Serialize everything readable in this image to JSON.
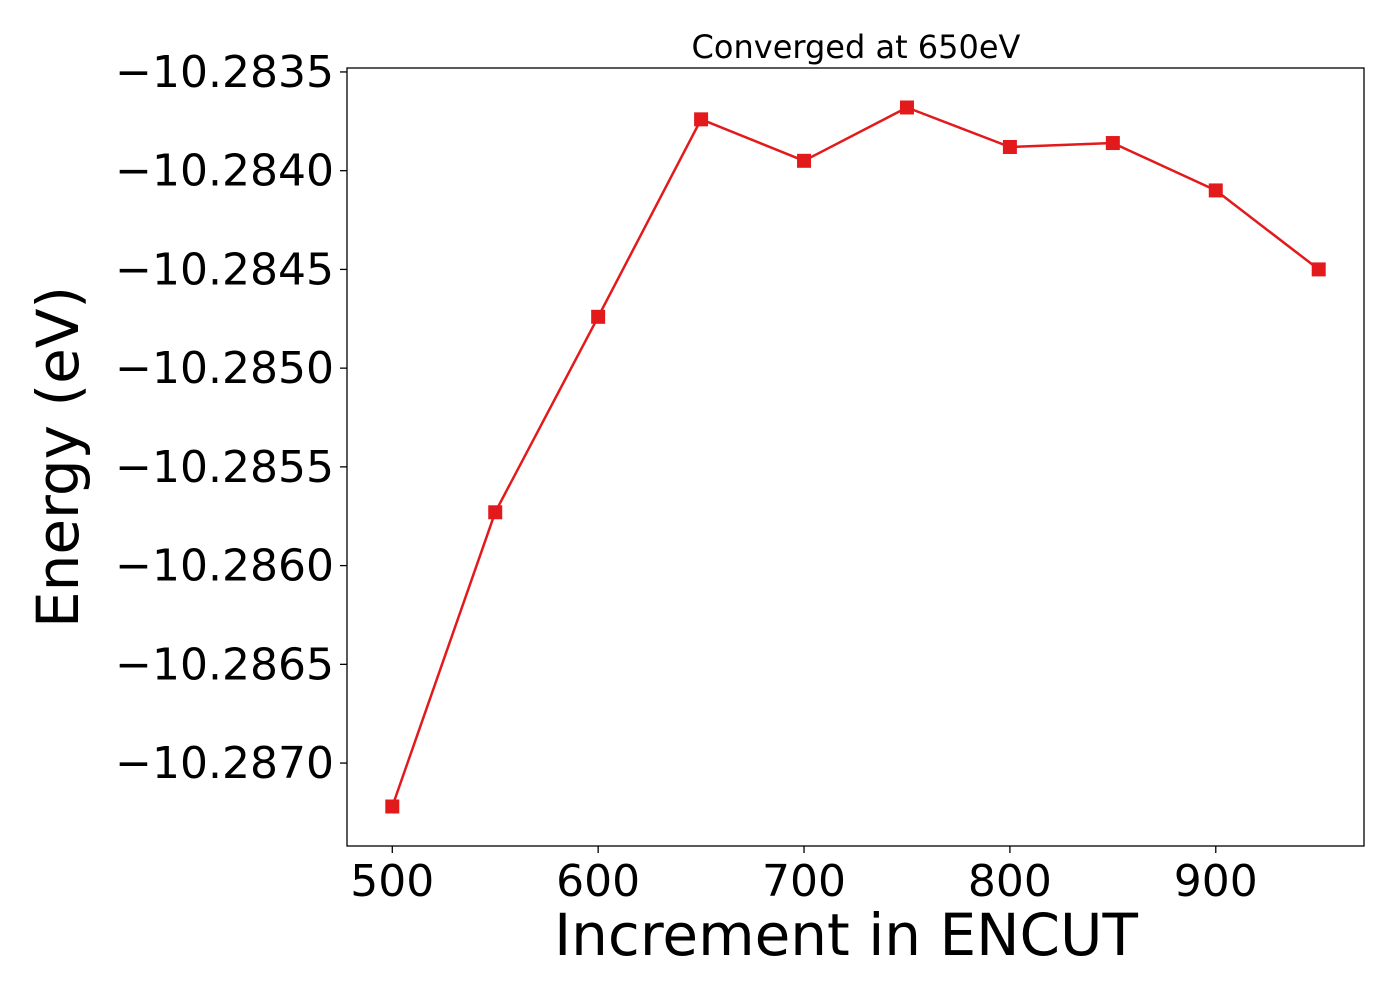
{
  "chart_data": {
    "type": "line",
    "title": "Converged at 650eV",
    "xlabel": "Increment in ENCUT",
    "ylabel": "Energy (eV)",
    "xlim": [
      478,
      972
    ],
    "ylim": [
      -10.28742,
      -10.28348
    ],
    "xticks": [
      500,
      600,
      700,
      800,
      900
    ],
    "xtick_labels": [
      "500",
      "600",
      "700",
      "800",
      "900"
    ],
    "yticks": [
      -10.2835,
      -10.284,
      -10.2845,
      -10.285,
      -10.2855,
      -10.286,
      -10.2865,
      -10.287
    ],
    "ytick_labels": [
      "−10.2835",
      "−10.2840",
      "−10.2845",
      "−10.2850",
      "−10.2855",
      "−10.2860",
      "−10.2865",
      "−10.2870"
    ],
    "grid": false,
    "legend": "none",
    "series": [
      {
        "color": "#e31a1c",
        "marker": "square",
        "x": [
          500,
          550,
          600,
          650,
          700,
          750,
          800,
          850,
          900,
          950
        ],
        "y": [
          -10.28722,
          -10.28573,
          -10.28474,
          -10.28374,
          -10.28395,
          -10.28368,
          -10.28388,
          -10.28386,
          -10.2841,
          -10.2845
        ]
      }
    ]
  }
}
